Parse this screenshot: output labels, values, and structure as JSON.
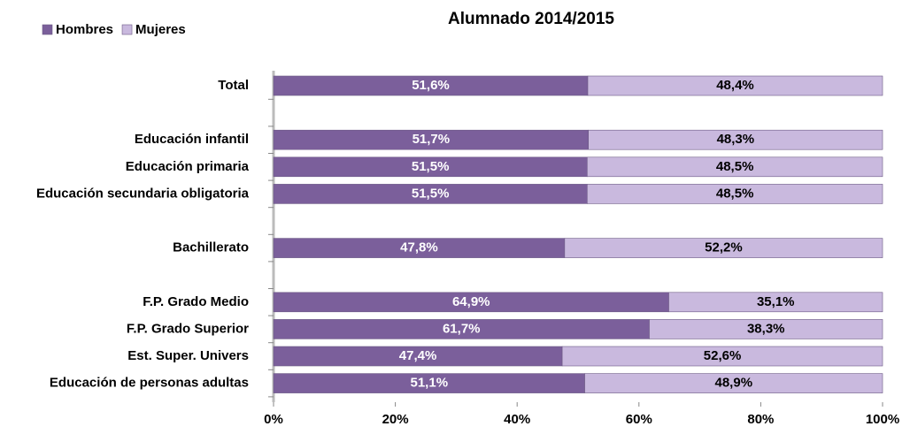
{
  "chart_data": {
    "type": "stacked-bar-horizontal",
    "title": "Alumnado 2014/2015",
    "categories": [
      "Total",
      null,
      "Educación infantil",
      "Educación primaria",
      "Educación secundaria obligatoria",
      null,
      "Bachillerato",
      null,
      "F.P. Grado Medio",
      "F.P. Grado Superior",
      "Est. Super. Univers",
      "Educación de personas adultas"
    ],
    "series": [
      {
        "name": "Hombres",
        "color": "#7b5f9b",
        "values": [
          51.6,
          null,
          51.7,
          51.5,
          51.5,
          null,
          47.8,
          null,
          64.9,
          61.7,
          47.4,
          51.1
        ],
        "value_labels": [
          "51,6%",
          null,
          "51,7%",
          "51,5%",
          "51,5%",
          null,
          "47,8%",
          null,
          "64,9%",
          "61,7%",
          "47,4%",
          "51,1%"
        ]
      },
      {
        "name": "Mujeres",
        "color": "#c9b9de",
        "values": [
          48.4,
          null,
          48.3,
          48.5,
          48.5,
          null,
          52.2,
          null,
          35.1,
          38.3,
          52.6,
          48.9
        ],
        "value_labels": [
          "48,4%",
          null,
          "48,3%",
          "48,5%",
          "48,5%",
          null,
          "52,2%",
          null,
          "35,1%",
          "38,3%",
          "52,6%",
          "48,9%"
        ]
      }
    ],
    "xlim": [
      0,
      100
    ],
    "xticks": [
      {
        "value": 0,
        "label": "0%"
      },
      {
        "value": 20,
        "label": "20%"
      },
      {
        "value": 40,
        "label": "40%"
      },
      {
        "value": 60,
        "label": "60%"
      },
      {
        "value": 80,
        "label": "80%"
      },
      {
        "value": 100,
        "label": "100%"
      }
    ],
    "legend": "top-left"
  }
}
